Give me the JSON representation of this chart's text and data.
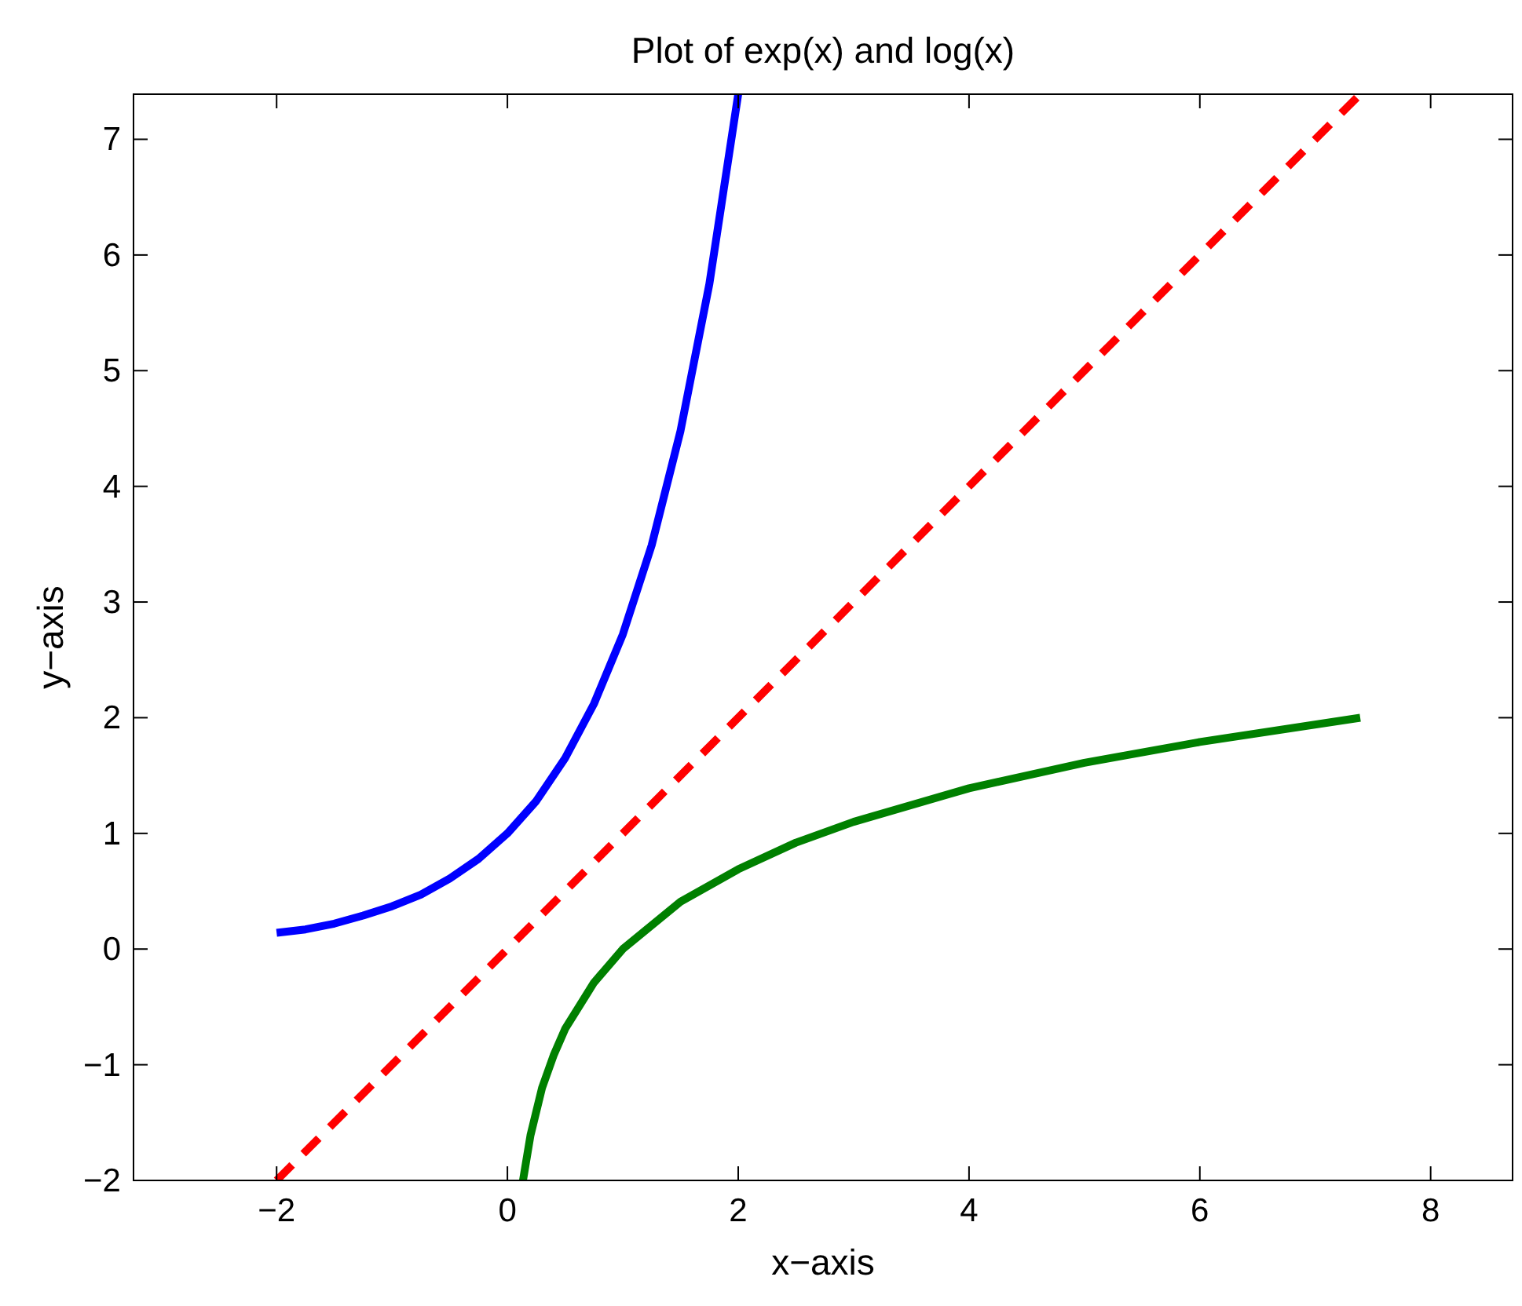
{
  "chart_data": {
    "type": "line",
    "title": "Plot of exp(x) and log(x)",
    "xlabel": "x−axis",
    "ylabel": "y−axis",
    "xlim": [
      -3.24,
      8.71
    ],
    "ylim": [
      -2,
      7.39
    ],
    "xticks": [
      {
        "value": -2,
        "label": "−2"
      },
      0,
      2,
      4,
      6,
      8
    ],
    "yticks": [
      {
        "value": -2,
        "label": "−2"
      },
      {
        "value": -1,
        "label": "−1"
      },
      0,
      1,
      2,
      3,
      4,
      5,
      6,
      7
    ],
    "grid": false,
    "series": [
      {
        "color": "#0000ff",
        "line_style": "solid",
        "x": [
          -2,
          -1.75,
          -1.5,
          -1.25,
          -1,
          -0.75,
          -0.5,
          -0.25,
          0,
          0.25,
          0.5,
          0.75,
          1,
          1.25,
          1.5,
          1.75,
          2
        ],
        "values": [
          0.14,
          0.17,
          0.22,
          0.29,
          0.37,
          0.47,
          0.61,
          0.78,
          1,
          1.28,
          1.65,
          2.12,
          2.72,
          3.49,
          4.48,
          5.75,
          7.39
        ]
      },
      {
        "color": "#ff0000",
        "line_style": "dashed",
        "x": [
          -2,
          7.39
        ],
        "values": [
          -2,
          7.39
        ]
      },
      {
        "color": "#008000",
        "line_style": "solid",
        "x": [
          0.135,
          0.2,
          0.3,
          0.4,
          0.5,
          0.75,
          1,
          1.5,
          2,
          2.5,
          3,
          4,
          5,
          6,
          7.39
        ],
        "values": [
          -2,
          -1.61,
          -1.2,
          -0.92,
          -0.69,
          -0.29,
          0,
          0.41,
          0.69,
          0.92,
          1.1,
          1.39,
          1.61,
          1.79,
          2
        ]
      }
    ]
  }
}
